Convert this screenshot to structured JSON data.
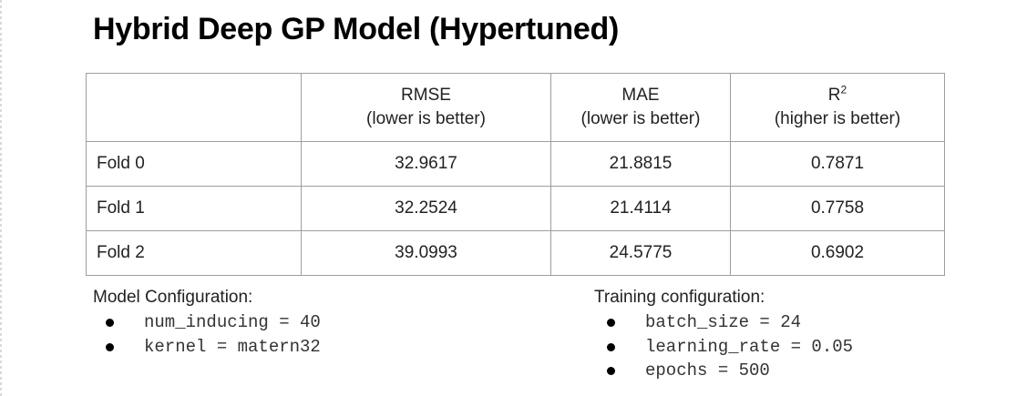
{
  "title": "Hybrid Deep GP Model (Hypertuned)",
  "table": {
    "columns": [
      {
        "name": "RMSE",
        "note": "(lower is better)"
      },
      {
        "name": "MAE",
        "note": "(lower is better)"
      },
      {
        "name": "R",
        "superscript": "2",
        "note": "(higher is better)"
      }
    ],
    "rows": [
      {
        "label": "Fold 0",
        "rmse": "32.9617",
        "mae": "21.8815",
        "r2": "0.7871"
      },
      {
        "label": "Fold 1",
        "rmse": "32.2524",
        "mae": "21.4114",
        "r2": "0.7758"
      },
      {
        "label": "Fold 2",
        "rmse": "39.0993",
        "mae": "24.5775",
        "r2": "0.6902"
      }
    ]
  },
  "model_config": {
    "title": "Model Configuration:",
    "items": [
      "num_inducing = 40",
      "kernel = matern32"
    ]
  },
  "training_config": {
    "title": "Training configuration:",
    "items": [
      "batch_size = 24",
      "learning_rate = 0.05",
      "epochs = 500"
    ]
  }
}
